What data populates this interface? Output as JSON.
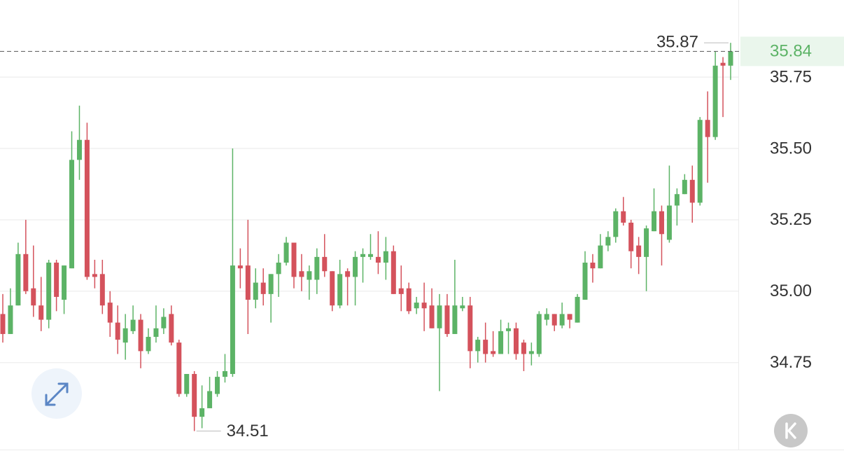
{
  "chart_data": {
    "type": "candlestick",
    "open": [
      34.92,
      34.85,
      34.95,
      35.13,
      35.01,
      34.95,
      34.9,
      35.1,
      34.97,
      35.08,
      35.46,
      35.53,
      35.06,
      35.06,
      34.96,
      34.89,
      34.82,
      34.86,
      34.9,
      34.79,
      34.84,
      34.87,
      34.92,
      34.82,
      34.64,
      34.71,
      34.56,
      34.59,
      34.64,
      34.7,
      34.71,
      35.09,
      35.09,
      34.97,
      35.03,
      34.99,
      35.06,
      35.1,
      35.17,
      35.07,
      35.04,
      35.04,
      35.12,
      35.07,
      34.95,
      35.07,
      35.05,
      35.12,
      35.12,
      35.12,
      35.1,
      35.14,
      35.01,
      35.01,
      34.94,
      34.96,
      34.95,
      34.87,
      34.95,
      34.85,
      34.94,
      34.95,
      34.79,
      34.83,
      34.79,
      34.78,
      34.86,
      34.87,
      34.82,
      34.78,
      34.78,
      34.9,
      34.92,
      34.88,
      34.92,
      34.89,
      34.97,
      35.1,
      35.08,
      35.16,
      35.19,
      35.28,
      35.24,
      35.16,
      35.12,
      35.21,
      35.28,
      35.18,
      35.3,
      35.34,
      35.39,
      35.31,
      35.6,
      35.54,
      35.8,
      35.79
    ],
    "high": [
      34.99,
      35.01,
      35.17,
      35.25,
      35.16,
      35.05,
      35.11,
      35.11,
      35.09,
      35.56,
      35.65,
      35.59,
      35.11,
      35.11,
      35.0,
      34.95,
      34.92,
      34.95,
      34.92,
      34.87,
      34.95,
      34.94,
      34.95,
      34.83,
      34.71,
      34.72,
      34.67,
      34.7,
      34.72,
      34.78,
      35.5,
      35.15,
      35.25,
      35.08,
      35.08,
      35.06,
      35.13,
      35.19,
      35.17,
      35.13,
      35.09,
      35.15,
      35.2,
      35.07,
      35.11,
      35.08,
      35.14,
      35.15,
      35.2,
      35.21,
      35.19,
      35.16,
      35.09,
      35.03,
      34.98,
      35.03,
      35.01,
      34.99,
      34.99,
      35.11,
      34.98,
      34.98,
      34.84,
      34.89,
      34.86,
      34.9,
      34.89,
      34.89,
      34.83,
      34.82,
      34.93,
      34.94,
      34.92,
      34.96,
      34.92,
      34.99,
      35.14,
      35.13,
      35.2,
      35.21,
      35.29,
      35.33,
      35.25,
      35.19,
      35.23,
      35.36,
      35.3,
      35.44,
      35.36,
      35.41,
      35.44,
      35.61,
      35.7,
      35.84,
      35.82,
      35.87
    ],
    "low": [
      34.82,
      34.85,
      34.95,
      34.99,
      34.91,
      34.86,
      34.87,
      34.93,
      34.92,
      35.08,
      35.39,
      35.04,
      35.01,
      34.92,
      34.84,
      34.78,
      34.76,
      34.85,
      34.73,
      34.78,
      34.82,
      34.85,
      34.81,
      34.63,
      34.63,
      34.51,
      34.52,
      34.59,
      34.63,
      34.68,
      34.7,
      35.01,
      34.85,
      34.94,
      34.95,
      34.89,
      34.98,
      35.09,
      35.01,
      35.0,
      34.97,
      34.99,
      35.05,
      34.93,
      34.94,
      34.95,
      34.95,
      35.03,
      35.11,
      35.06,
      35.04,
      34.99,
      34.93,
      34.92,
      34.92,
      34.86,
      34.87,
      34.65,
      34.84,
      34.85,
      34.93,
      34.73,
      34.75,
      34.75,
      34.77,
      34.78,
      34.78,
      34.76,
      34.72,
      34.74,
      34.77,
      34.88,
      34.86,
      34.87,
      34.87,
      34.89,
      34.97,
      35.03,
      35.08,
      35.14,
      35.17,
      35.23,
      35.08,
      35.06,
      35.0,
      35.21,
      35.09,
      35.17,
      35.23,
      35.34,
      35.24,
      35.3,
      35.38,
      35.53,
      35.61,
      35.74
    ],
    "close": [
      34.85,
      34.95,
      35.13,
      35.0,
      34.95,
      34.9,
      35.1,
      34.98,
      35.09,
      35.46,
      35.53,
      35.05,
      35.05,
      34.95,
      34.89,
      34.83,
      34.87,
      34.9,
      34.79,
      34.84,
      34.87,
      34.91,
      34.82,
      34.64,
      34.71,
      34.56,
      34.59,
      34.65,
      34.7,
      34.72,
      35.09,
      35.08,
      34.97,
      35.03,
      34.99,
      35.06,
      35.1,
      35.17,
      35.05,
      35.05,
      35.07,
      35.12,
      35.07,
      34.95,
      35.06,
      35.05,
      35.12,
      35.13,
      35.13,
      35.1,
      35.14,
      34.99,
      34.99,
      34.93,
      34.96,
      34.94,
      34.87,
      34.95,
      34.85,
      34.95,
      34.95,
      34.79,
      34.83,
      34.78,
      34.78,
      34.86,
      34.87,
      34.78,
      34.78,
      34.79,
      34.92,
      34.92,
      34.88,
      34.92,
      34.9,
      34.98,
      35.1,
      35.08,
      35.16,
      35.19,
      35.28,
      35.24,
      35.14,
      35.12,
      35.22,
      35.28,
      35.2,
      35.3,
      35.34,
      35.39,
      35.31,
      35.6,
      35.54,
      35.79,
      35.79,
      35.84
    ],
    "up_color": "#5cb366",
    "down_color": "#d4525c",
    "ylim": [
      34.45,
      36.02
    ],
    "yticks": [
      34.75,
      {
        "value": 35,
        "label": "35.00"
      },
      35.25,
      {
        "value": 35.5,
        "label": "35.50"
      },
      35.75
    ],
    "grid": true,
    "max_price": 35.87,
    "min_price": 34.51,
    "last_price": 35.84
  }
}
